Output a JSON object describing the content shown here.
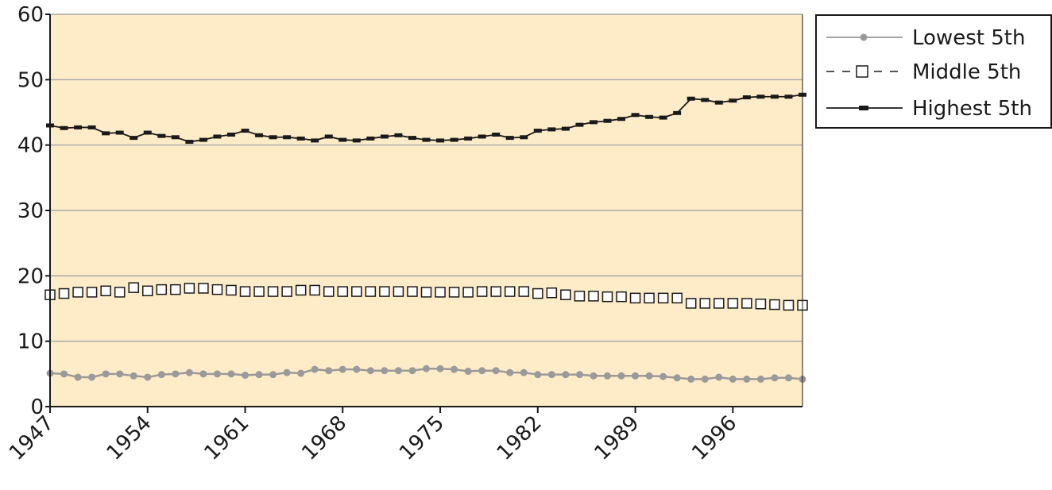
{
  "colors": {
    "plot_background": "#feecc8",
    "grid": "#a7a7a7",
    "axis": "#1a1a1a",
    "lowest": "#9a9a9a",
    "middle": "#1a1a1a",
    "highest": "#1a1a1a"
  },
  "chart_data": {
    "type": "line",
    "title": "",
    "xlabel": "",
    "ylabel": "",
    "ylim": [
      0,
      60
    ],
    "yticks": [
      "0",
      "10",
      "20",
      "30",
      "40",
      "50",
      "60"
    ],
    "xlim": [
      1947,
      2001
    ],
    "xticks": [
      "1947",
      "1954",
      "1961",
      "1968",
      "1975",
      "1982",
      "1989",
      "1996"
    ],
    "grid": true,
    "legend_position": "right-top",
    "x": [
      1947,
      1948,
      1949,
      1950,
      1951,
      1952,
      1953,
      1954,
      1955,
      1956,
      1957,
      1958,
      1959,
      1960,
      1961,
      1962,
      1963,
      1964,
      1965,
      1966,
      1967,
      1968,
      1969,
      1970,
      1971,
      1972,
      1973,
      1974,
      1975,
      1976,
      1977,
      1978,
      1979,
      1980,
      1981,
      1982,
      1983,
      1984,
      1985,
      1986,
      1987,
      1988,
      1989,
      1990,
      1991,
      1992,
      1993,
      1994,
      1995,
      1996,
      1997,
      1998,
      1999,
      2000,
      2001
    ],
    "series": [
      {
        "name": "Lowest 5th",
        "style": "solid-dot",
        "values": [
          5.1,
          5.0,
          4.5,
          4.5,
          5.0,
          5.0,
          4.7,
          4.5,
          4.9,
          5.0,
          5.2,
          5.0,
          5.0,
          5.0,
          4.8,
          4.9,
          4.9,
          5.2,
          5.1,
          5.7,
          5.5,
          5.7,
          5.7,
          5.5,
          5.5,
          5.5,
          5.5,
          5.8,
          5.8,
          5.7,
          5.4,
          5.5,
          5.5,
          5.2,
          5.2,
          4.9,
          4.9,
          4.9,
          4.9,
          4.7,
          4.7,
          4.7,
          4.7,
          4.7,
          4.6,
          4.4,
          4.2,
          4.2,
          4.5,
          4.2,
          4.2,
          4.2,
          4.4,
          4.4,
          4.2
        ]
      },
      {
        "name": "Middle 5th",
        "style": "dashed-square",
        "values": [
          17.1,
          17.3,
          17.5,
          17.5,
          17.7,
          17.5,
          18.2,
          17.7,
          17.9,
          17.9,
          18.1,
          18.1,
          17.9,
          17.8,
          17.6,
          17.6,
          17.6,
          17.6,
          17.8,
          17.8,
          17.6,
          17.6,
          17.6,
          17.6,
          17.6,
          17.6,
          17.6,
          17.5,
          17.5,
          17.5,
          17.5,
          17.6,
          17.6,
          17.6,
          17.6,
          17.3,
          17.4,
          17.1,
          16.9,
          16.9,
          16.8,
          16.8,
          16.6,
          16.6,
          16.6,
          16.6,
          15.8,
          15.8,
          15.8,
          15.8,
          15.8,
          15.7,
          15.6,
          15.5,
          15.5
        ]
      },
      {
        "name": "Highest 5th",
        "style": "solid-dash",
        "values": [
          43.0,
          42.6,
          42.7,
          42.7,
          41.8,
          41.9,
          41.1,
          41.9,
          41.4,
          41.2,
          40.5,
          40.8,
          41.3,
          41.6,
          42.2,
          41.5,
          41.2,
          41.2,
          41.0,
          40.7,
          41.3,
          40.8,
          40.7,
          41.0,
          41.3,
          41.5,
          41.1,
          40.8,
          40.7,
          40.8,
          41.0,
          41.3,
          41.6,
          41.1,
          41.2,
          42.2,
          42.4,
          42.5,
          43.1,
          43.5,
          43.7,
          44.0,
          44.6,
          44.3,
          44.2,
          44.9,
          47.1,
          46.9,
          46.5,
          46.8,
          47.3,
          47.4,
          47.4,
          47.4,
          47.7
        ]
      }
    ]
  }
}
